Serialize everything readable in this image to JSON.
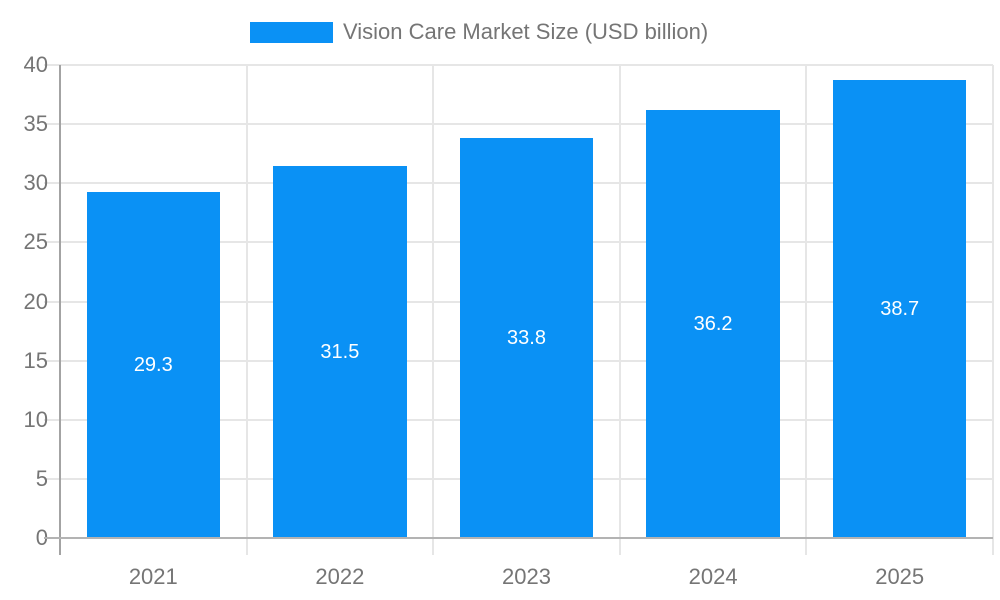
{
  "legend": {
    "label": "Vision Care Market Size (USD billion)"
  },
  "chart_data": {
    "type": "bar",
    "title": "Vision Care Market Size (USD billion)",
    "categories": [
      "2021",
      "2022",
      "2023",
      "2024",
      "2025"
    ],
    "series": [
      {
        "name": "Vision Care Market Size (USD billion)",
        "values": [
          29.3,
          31.5,
          33.8,
          36.2,
          38.7
        ]
      }
    ],
    "bar_value_labels": [
      "29.3",
      "31.5",
      "33.8",
      "36.2",
      "38.7"
    ],
    "xlabel": "",
    "ylabel": "",
    "ylim": [
      0,
      40
    ],
    "yticks": [
      0,
      5,
      10,
      15,
      20,
      25,
      30,
      35,
      40
    ],
    "grid": true,
    "legend_position": "top",
    "value_labels_inside_bars": true
  },
  "colors": {
    "bar": "#0a91f5",
    "bar_label": "#ffffff",
    "grid": "#e6e6e6",
    "x_axis_line": "#b3b3b3",
    "y_axis_line": "#a3a3a3",
    "tick_text": "#757575",
    "legend_text": "#757575",
    "background": "#ffffff"
  }
}
